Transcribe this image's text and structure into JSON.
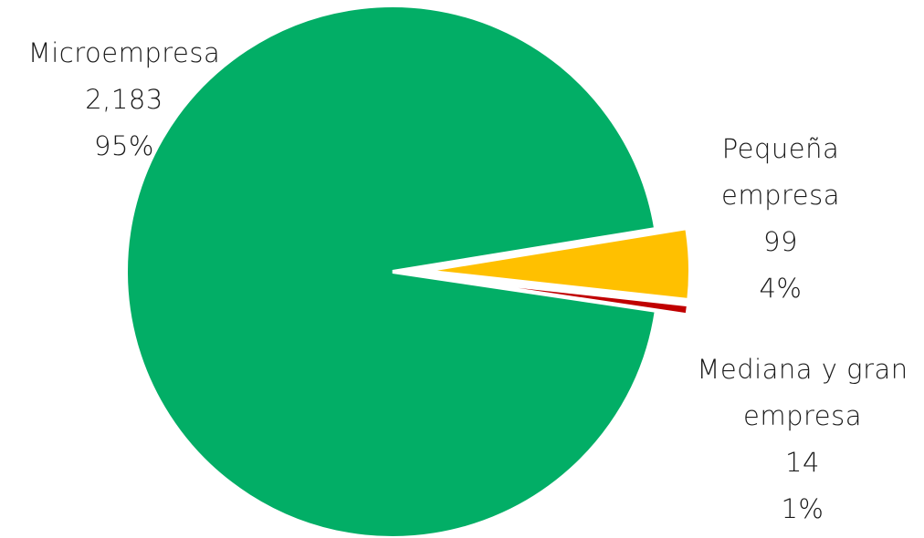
{
  "chart_data": {
    "type": "pie",
    "title": "",
    "slices": [
      {
        "name": "Microempresa",
        "label_lines": [
          "Microempresa"
        ],
        "value": 2183,
        "value_label": "2,183",
        "percent_label": "95%",
        "color": "#02ae66"
      },
      {
        "name": "Pequeña empresa",
        "label_lines": [
          "Pequeña",
          "empresa"
        ],
        "value": 99,
        "value_label": "99",
        "percent_label": "4%",
        "color": "#ffc000"
      },
      {
        "name": "Mediana y gran empresa",
        "label_lines": [
          "Mediana y gran",
          "empresa"
        ],
        "value": 14,
        "value_label": "14",
        "percent_label": "1%",
        "color": "#c00000"
      }
    ]
  }
}
